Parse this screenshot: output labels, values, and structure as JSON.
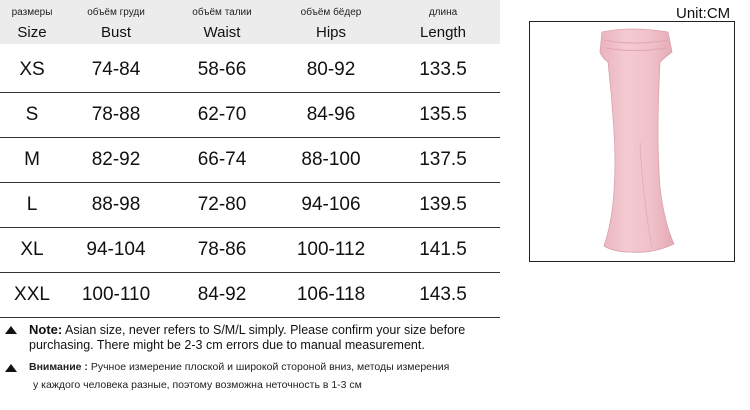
{
  "table": {
    "headers": [
      {
        "ru": "размеры",
        "en": "Size"
      },
      {
        "ru": "объём груди",
        "en": "Bust"
      },
      {
        "ru": "объём талии",
        "en": "Waist"
      },
      {
        "ru": "объём бёдер",
        "en": "Hips"
      },
      {
        "ru": "длина",
        "en": "Length"
      }
    ],
    "rows": [
      [
        "XS",
        "74-84",
        "58-66",
        "80-92",
        "133.5"
      ],
      [
        "S",
        "78-88",
        "62-70",
        "84-96",
        "135.5"
      ],
      [
        "M",
        "82-92",
        "66-74",
        "88-100",
        "137.5"
      ],
      [
        "L",
        "88-98",
        "72-80",
        "94-106",
        "139.5"
      ],
      [
        "XL",
        "94-104",
        "78-86",
        "100-112",
        "141.5"
      ],
      [
        "XXL",
        "100-110",
        "84-92",
        "106-118",
        "143.5"
      ]
    ]
  },
  "unit_label": "Unit:CM",
  "colors": {
    "header_bg": "#ececec",
    "dress": "#f2c4cc"
  },
  "notes": {
    "note_label": "Note:",
    "note_line1": "Asian size, never refers to S/M/L simply. Please confirm your size before",
    "note_line2": "purchasing. There might be 2-3 cm errors due to manual measurement.",
    "ru_label": "Внимание :",
    "ru_line1": "Ручное измерение плоской и широкой стороной вниз, методы измерения",
    "ru_line2": "у каждого человека разные, поэтому возможна неточность в 1-3 см"
  }
}
